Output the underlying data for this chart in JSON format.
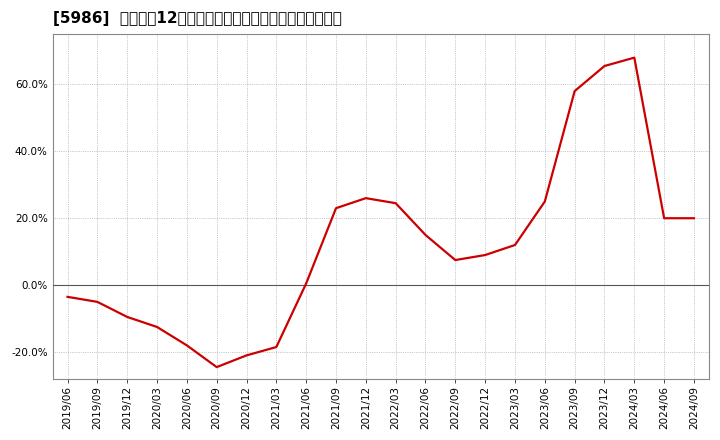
{
  "title": "[5986]  売上高の12か月移動合計の対前年同期増減率の推移",
  "x_labels": [
    "2019/06",
    "2019/09",
    "2019/12",
    "2020/03",
    "2020/06",
    "2020/09",
    "2020/12",
    "2021/03",
    "2021/06",
    "2021/09",
    "2021/12",
    "2022/03",
    "2022/06",
    "2022/09",
    "2022/12",
    "2023/03",
    "2023/06",
    "2023/09",
    "2023/12",
    "2024/03",
    "2024/06",
    "2024/09"
  ],
  "y_values": [
    -3.5,
    -5.0,
    -9.5,
    -12.5,
    -18.0,
    -24.5,
    -21.0,
    -18.5,
    0.5,
    23.0,
    26.0,
    24.5,
    15.0,
    7.5,
    9.0,
    12.0,
    25.0,
    58.0,
    65.5,
    68.0,
    20.0,
    20.0
  ],
  "line_color": "#cc0000",
  "bg_color": "#ffffff",
  "plot_bg_color": "#ffffff",
  "grid_color": "#999999",
  "zero_line_color": "#555555",
  "border_color": "#888888",
  "ylim": [
    -28,
    75
  ],
  "yticks": [
    -20.0,
    0.0,
    20.0,
    40.0,
    60.0
  ],
  "title_fontsize": 11,
  "tick_fontsize": 7.5,
  "line_width": 1.6
}
